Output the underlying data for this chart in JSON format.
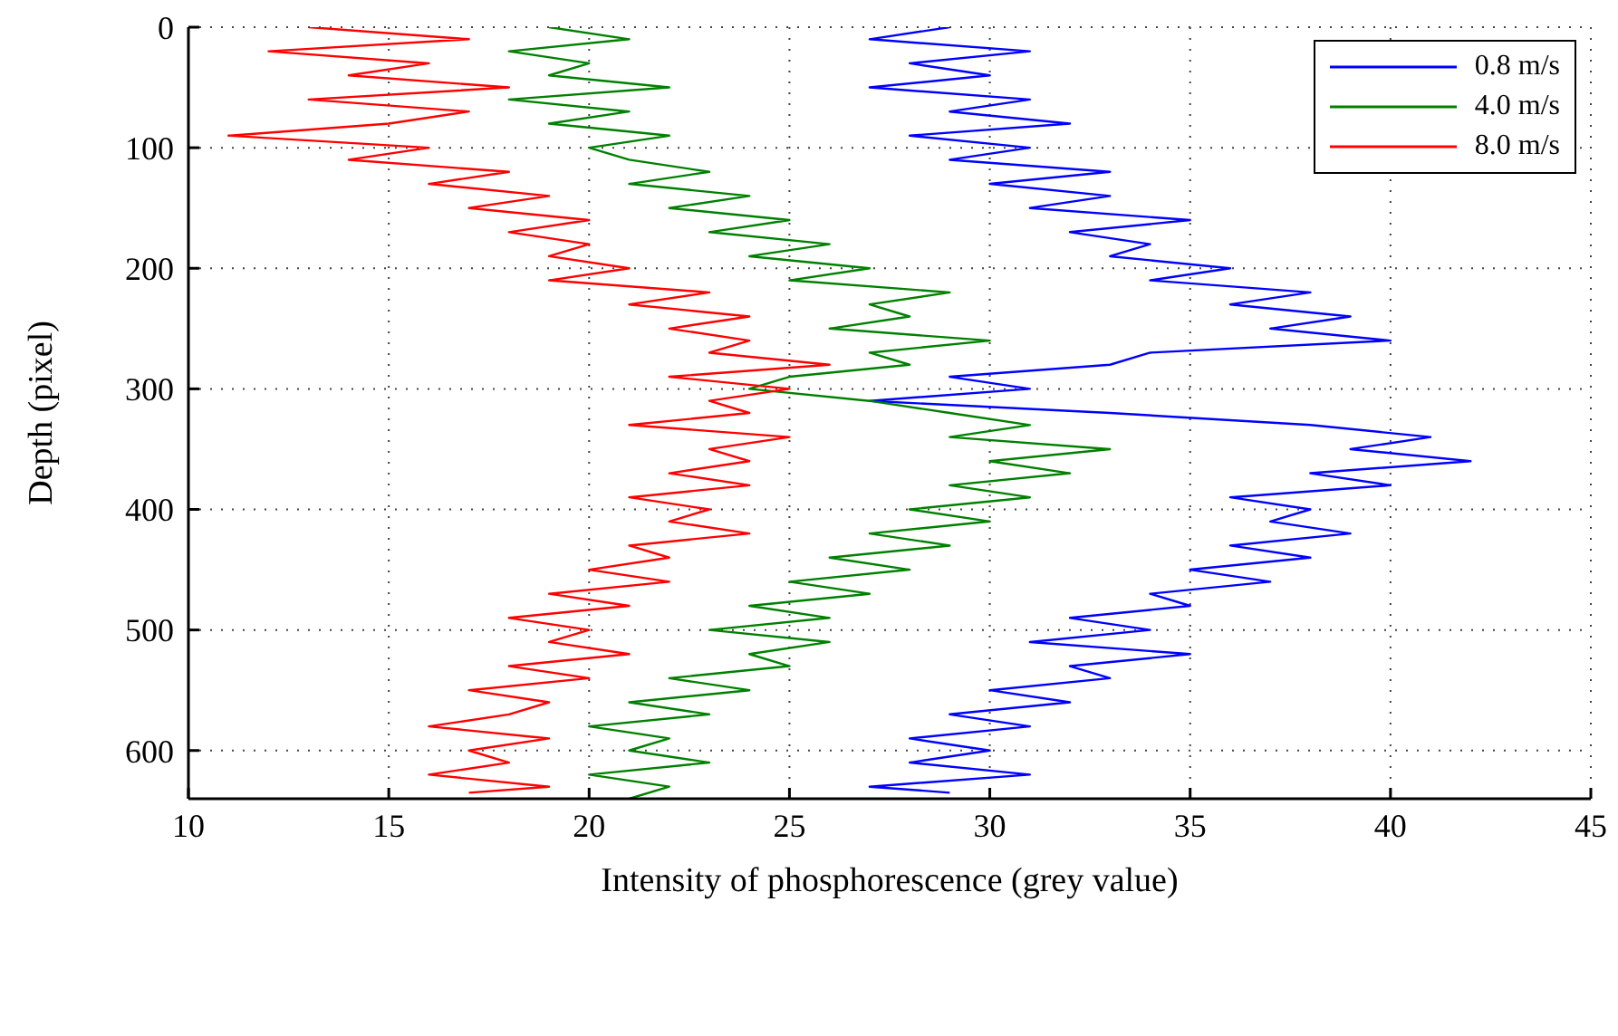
{
  "chart_data": {
    "type": "line",
    "xlabel": "Intensity of phosphorescence (grey value)",
    "ylabel": "Depth (pixel)",
    "xlim": [
      10,
      45
    ],
    "xticks": [
      10,
      15,
      20,
      25,
      30,
      35,
      40,
      45
    ],
    "ylim": [
      640,
      0
    ],
    "yticks": [
      0,
      100,
      200,
      300,
      400,
      500,
      600
    ],
    "grid": true,
    "legend": "top right",
    "marker": "none",
    "line_style": "solid",
    "series": [
      {
        "name": "0.8 m/s",
        "color": "#0000ff",
        "x": [
          29,
          27,
          31,
          28,
          30,
          27,
          31,
          29,
          32,
          28,
          31,
          29,
          33,
          30,
          33,
          31,
          35,
          32,
          34,
          33,
          36,
          34,
          38,
          36,
          39,
          37,
          40,
          34,
          33,
          29,
          31,
          27,
          33,
          38,
          41,
          39,
          42,
          38,
          40,
          36,
          38,
          37,
          39,
          36,
          38,
          35,
          37,
          34,
          35,
          32,
          34,
          31,
          35,
          32,
          33,
          30,
          32,
          29,
          31,
          28,
          30,
          28,
          31,
          27,
          29
        ],
        "values": [
          0,
          10,
          20,
          30,
          40,
          50,
          60,
          70,
          80,
          90,
          100,
          110,
          120,
          130,
          140,
          150,
          160,
          170,
          180,
          190,
          200,
          210,
          220,
          230,
          240,
          250,
          260,
          270,
          280,
          290,
          300,
          310,
          320,
          330,
          340,
          350,
          360,
          370,
          380,
          390,
          400,
          410,
          420,
          430,
          440,
          450,
          460,
          470,
          480,
          490,
          500,
          510,
          520,
          530,
          540,
          550,
          560,
          570,
          580,
          590,
          600,
          610,
          620,
          630,
          635
        ]
      },
      {
        "name": "4.0 m/s",
        "color": "#008000",
        "x": [
          19,
          21,
          18,
          20,
          19,
          22,
          18,
          21,
          19,
          22,
          20,
          21,
          23,
          21,
          24,
          22,
          25,
          23,
          26,
          24,
          27,
          25,
          29,
          27,
          28,
          26,
          30,
          27,
          28,
          25,
          24,
          27,
          29,
          31,
          29,
          33,
          30,
          32,
          29,
          31,
          28,
          30,
          27,
          29,
          26,
          28,
          25,
          27,
          24,
          26,
          23,
          26,
          24,
          25,
          22,
          24,
          21,
          23,
          20,
          22,
          21,
          23,
          20,
          22,
          21
        ],
        "values": [
          0,
          10,
          20,
          30,
          40,
          50,
          60,
          70,
          80,
          90,
          100,
          110,
          120,
          130,
          140,
          150,
          160,
          170,
          180,
          190,
          200,
          210,
          220,
          230,
          240,
          250,
          260,
          270,
          280,
          290,
          300,
          310,
          320,
          330,
          340,
          350,
          360,
          370,
          380,
          390,
          400,
          410,
          420,
          430,
          440,
          450,
          460,
          470,
          480,
          490,
          500,
          510,
          520,
          530,
          540,
          550,
          560,
          570,
          580,
          590,
          600,
          610,
          620,
          630,
          640
        ]
      },
      {
        "name": "8.0 m/s",
        "color": "#ff0000",
        "x": [
          13,
          17,
          12,
          16,
          14,
          18,
          13,
          17,
          15,
          11,
          16,
          14,
          18,
          16,
          19,
          17,
          20,
          18,
          20,
          19,
          21,
          19,
          23,
          21,
          24,
          22,
          24,
          23,
          26,
          22,
          25,
          23,
          24,
          21,
          25,
          23,
          24,
          22,
          24,
          21,
          23,
          22,
          24,
          21,
          22,
          20,
          22,
          19,
          21,
          18,
          20,
          19,
          21,
          18,
          20,
          17,
          19,
          18,
          16,
          19,
          17,
          18,
          16,
          19,
          17
        ],
        "values": [
          0,
          10,
          20,
          30,
          40,
          50,
          60,
          70,
          80,
          90,
          100,
          110,
          120,
          130,
          140,
          150,
          160,
          170,
          180,
          190,
          200,
          210,
          220,
          230,
          240,
          250,
          260,
          270,
          280,
          290,
          300,
          310,
          320,
          330,
          340,
          350,
          360,
          370,
          380,
          390,
          400,
          410,
          420,
          430,
          440,
          450,
          460,
          470,
          480,
          490,
          500,
          510,
          520,
          530,
          540,
          550,
          560,
          570,
          580,
          590,
          600,
          610,
          620,
          630,
          635
        ]
      }
    ]
  }
}
